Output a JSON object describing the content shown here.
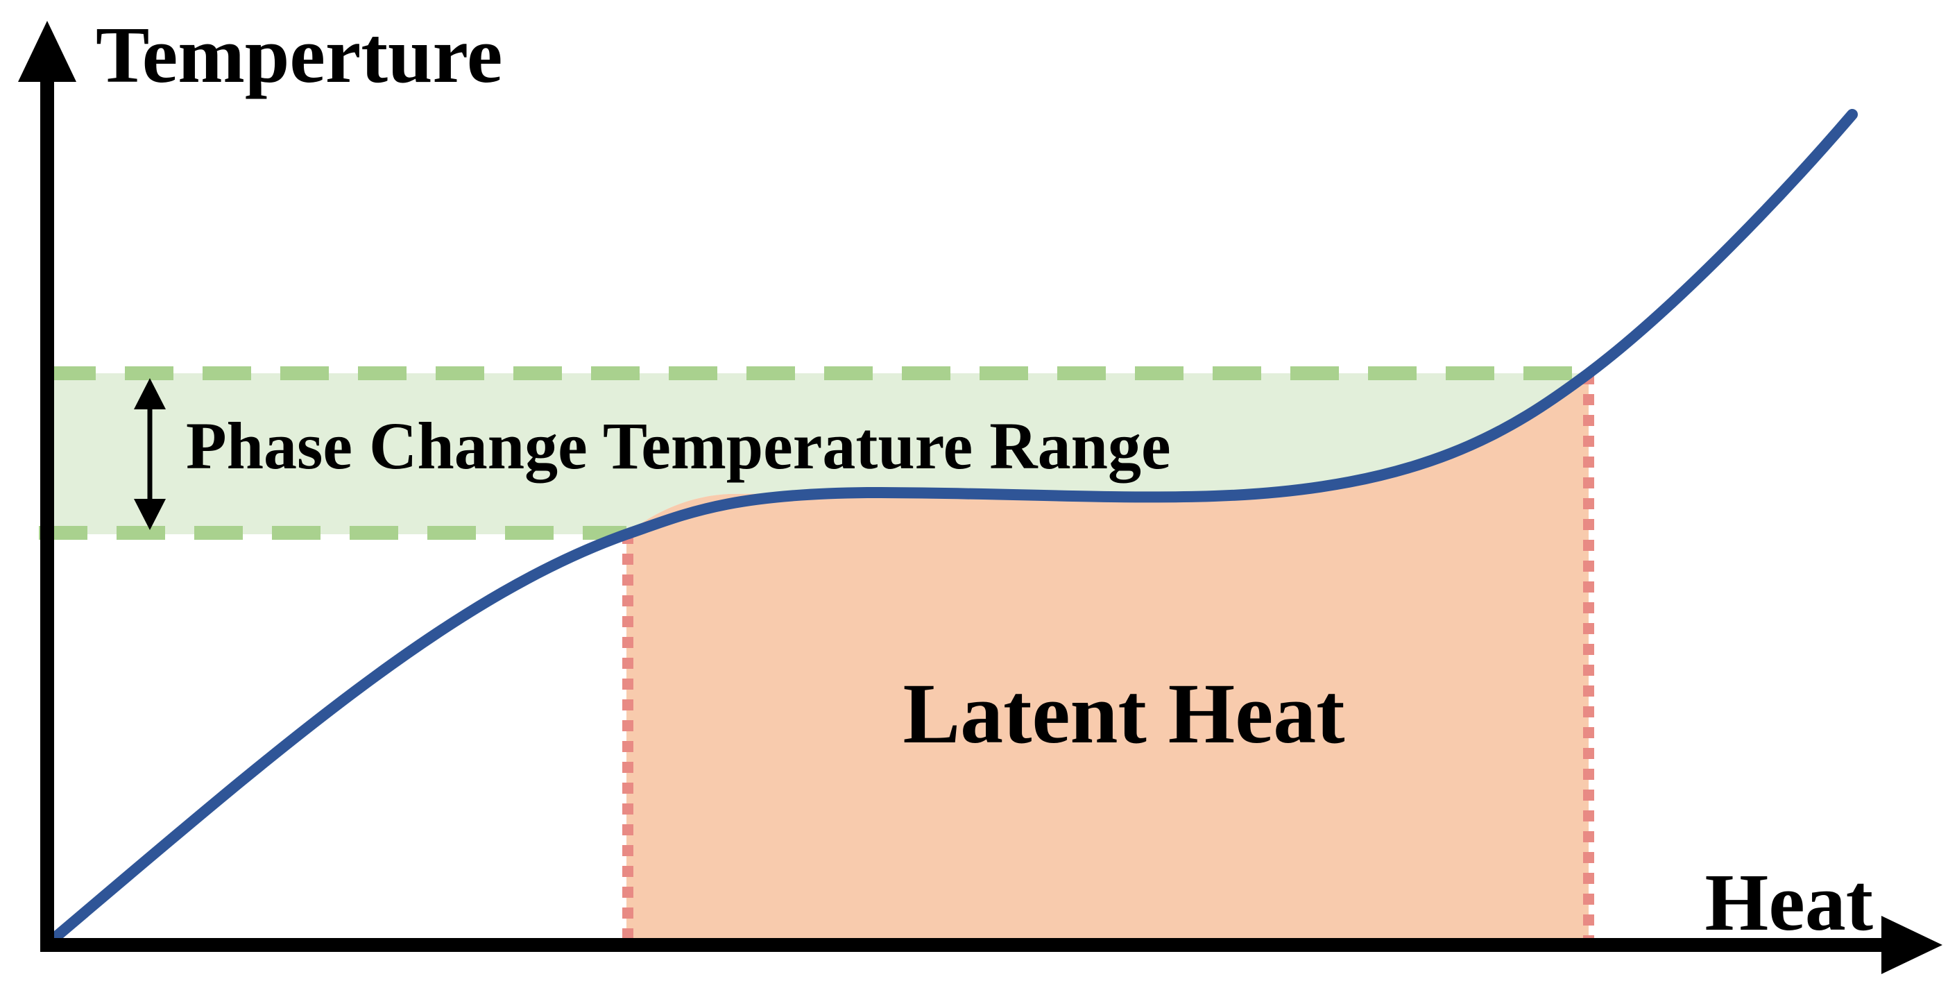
{
  "y_axis_label": "Temperture",
  "x_axis_label": "Heat",
  "phase_range_label": "Phase Change Temperature Range",
  "latent_heat_label": "Latent Heat",
  "colors": {
    "axis": "#000000",
    "curve": "#2f5597",
    "phase_band_fill": "#e2efda",
    "phase_band_dash": "#a9d18e",
    "latent_fill": "#f8cbad",
    "latent_dots": "#e88a84",
    "arrow": "#000000"
  }
}
